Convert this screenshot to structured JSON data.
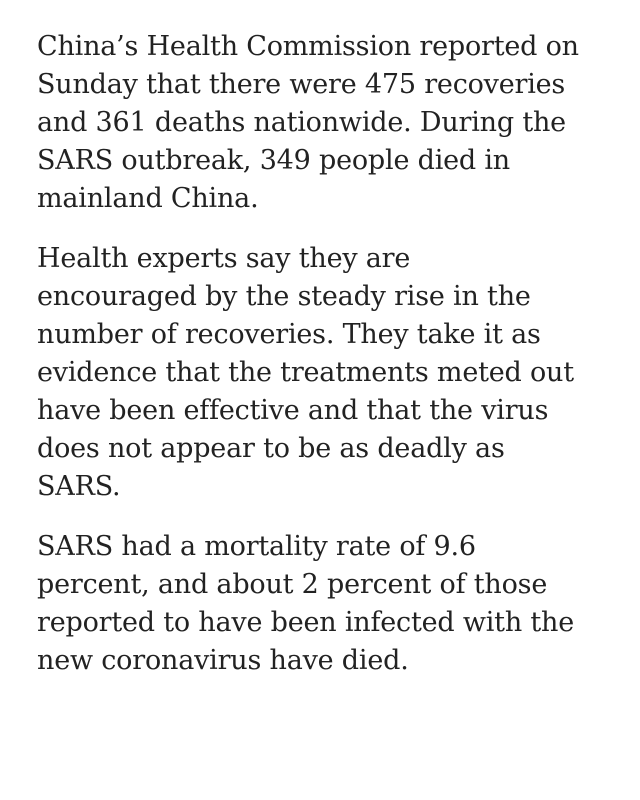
{
  "article": {
    "paragraphs": [
      {
        "lines": [
          "China’s Health Commission reported on",
          "Sunday that there were 475 recoveries",
          "and 361 deaths nationwide. During the",
          "SARS outbreak, 349 people died in",
          "mainland China."
        ]
      },
      {
        "lines": [
          "Health experts say they are",
          "encouraged by the steady rise in the",
          "number of recoveries. They take it as",
          "evidence that the treatments meted out",
          "have been effective and that the virus",
          "does not appear to be as deadly as",
          "SARS."
        ]
      },
      {
        "lines": [
          "SARS had a mortality rate of 9.6",
          "percent, and about 2 percent of those",
          "reported to have been infected with the",
          "new coronavirus have died."
        ]
      }
    ]
  }
}
